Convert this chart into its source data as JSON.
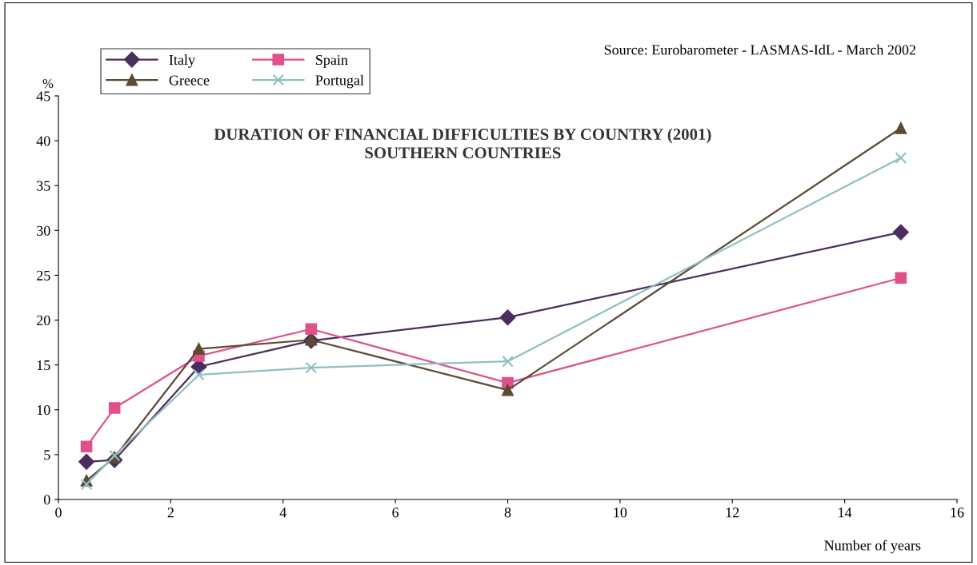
{
  "chart_data": {
    "type": "line",
    "title": "DURATION OF FINANCIAL DIFFICULTIES BY COUNTRY (2001)\nSOUTHERN COUNTRIES",
    "xlabel": "Number of years",
    "ylabel": "%",
    "annotations": [
      "Source: Eurobarometer - LASMAS-IdL - March 2002"
    ],
    "x": [
      0.5,
      1,
      2.5,
      4.5,
      8,
      15
    ],
    "series": [
      {
        "name": "Italy",
        "color": "#4b2d5e",
        "marker": "diamond",
        "values": [
          4.2,
          4.4,
          14.8,
          17.7,
          20.3,
          29.8
        ]
      },
      {
        "name": "Spain",
        "color": "#e0508a",
        "marker": "square",
        "values": [
          5.9,
          10.2,
          16.0,
          19.0,
          13.0,
          24.7
        ]
      },
      {
        "name": "Greece",
        "color": "#5c4a32",
        "marker": "triangle",
        "values": [
          2.1,
          4.7,
          16.8,
          17.8,
          12.2,
          41.4
        ]
      },
      {
        "name": "Portugal",
        "color": "#8fbfc0",
        "marker": "cross",
        "values": [
          1.7,
          4.9,
          13.9,
          14.7,
          15.4,
          38.1
        ]
      }
    ],
    "xlim": [
      0,
      16
    ],
    "xticks": [
      0,
      2,
      4,
      6,
      8,
      10,
      12,
      14,
      16
    ],
    "ylim": [
      0,
      45
    ],
    "yticks": [
      0,
      5,
      10,
      15,
      20,
      25,
      30,
      35,
      40,
      45
    ],
    "grid": false,
    "legend": "top left"
  }
}
